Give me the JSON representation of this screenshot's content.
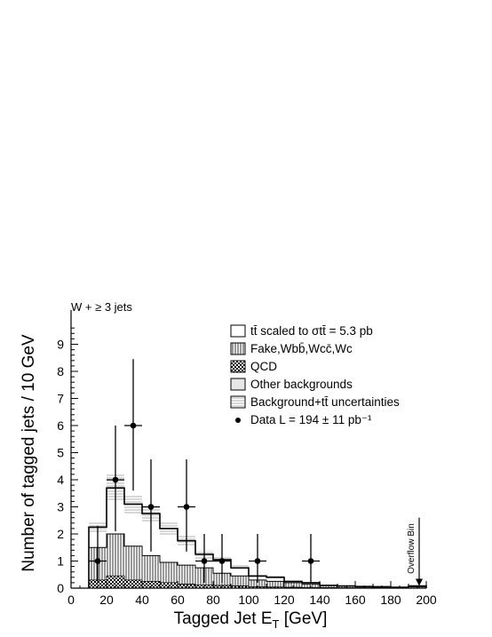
{
  "chart_data": {
    "type": "bar",
    "title": "W + ≥ 3 jets",
    "xlabel": {
      "main": "Tagged Jet E",
      "sub": "T",
      "unit": " [GeV]"
    },
    "ylabel": "Number of tagged jets / 10 GeV",
    "xlim": [
      0,
      200
    ],
    "ylim": [
      0,
      10
    ],
    "xticks": [
      0,
      20,
      40,
      60,
      80,
      100,
      120,
      140,
      160,
      180,
      200
    ],
    "yticks": [
      0,
      1,
      2,
      3,
      4,
      5,
      6,
      7,
      8,
      9
    ],
    "bin_edges": [
      10,
      20,
      30,
      40,
      50,
      60,
      70,
      80,
      90,
      100,
      110,
      120,
      130,
      140,
      150,
      160,
      170,
      180,
      190,
      200
    ],
    "series": [
      {
        "name": "tt̄ scaled to σtt̄ = 5.3 pb",
        "style": "open",
        "values": [
          2.25,
          3.7,
          3.1,
          2.75,
          2.2,
          1.75,
          1.25,
          1.05,
          0.75,
          0.45,
          0.4,
          0.25,
          0.2,
          0.1,
          0.08,
          0.06,
          0.05,
          0.03,
          0.08
        ]
      },
      {
        "name": "Other backgrounds",
        "style": "light-gray",
        "values": [
          1.5,
          2.0,
          1.55,
          1.2,
          0.95,
          0.85,
          0.75,
          0.55,
          0.45,
          0.3,
          0.25,
          0.2,
          0.15,
          0.1,
          0.08,
          0.06,
          0.05,
          0.03,
          0.05
        ]
      },
      {
        "name": "Fake,Wbb̄,Wcc̄,Wc",
        "style": "vertical-hatch",
        "values": [
          1.5,
          2.0,
          1.55,
          1.2,
          0.95,
          0.85,
          0.75,
          0.55,
          0.45,
          0.3,
          0.25,
          0.2,
          0.15,
          0.1,
          0.08,
          0.06,
          0.05,
          0.03,
          0.05
        ]
      },
      {
        "name": "QCD",
        "style": "checker",
        "values": [
          0.3,
          0.45,
          0.3,
          0.25,
          0.2,
          0.15,
          0.12,
          0.1,
          0.08,
          0.05,
          0.04,
          0.03,
          0.02,
          0.02,
          0.01,
          0.01,
          0.01,
          0.0,
          0.0
        ]
      },
      {
        "name": "Background+tt̄ uncertainties",
        "style": "horizontal-hatch",
        "values": [
          2.25,
          3.7,
          3.1,
          2.75,
          2.2,
          1.75,
          1.25,
          1.05,
          0.75,
          0.45,
          0.4,
          0.25,
          0.2,
          0.1,
          0.08,
          0.06,
          0.05,
          0.03,
          0.08
        ],
        "band": [
          0.2,
          0.5,
          0.35,
          0.3,
          0.25,
          0.2,
          0.15,
          0.12,
          0.1,
          0.06,
          0.05,
          0.04,
          0.03,
          0.02,
          0.02,
          0.01,
          0.01,
          0.01,
          0.02
        ]
      }
    ],
    "data_points": {
      "name": "Data L = 194 ± 11 pb⁻¹",
      "x": [
        15,
        25,
        35,
        45,
        65,
        75,
        85,
        105,
        135
      ],
      "y": [
        1,
        4,
        6,
        3,
        3,
        1,
        1,
        1,
        1
      ],
      "err_low": [
        0.8,
        1.9,
        2.4,
        1.65,
        1.65,
        0.8,
        0.8,
        0.8,
        0.8
      ],
      "err_high": [
        1.3,
        2.0,
        2.45,
        1.75,
        1.75,
        1.0,
        1.0,
        1.0,
        1.0
      ],
      "x_halfwidth": 5
    },
    "annotation": {
      "text": "Overflow Bin",
      "x": 195,
      "arrow_from_y": 2.6,
      "arrow_to_y": 0.05
    },
    "legend": {
      "placement": "top-right",
      "items": [
        {
          "kind": "open",
          "text": "tt̄ scaled to σtt̄ = 5.3 pb"
        },
        {
          "kind": "vertical-hatch",
          "text": "Fake,Wbb̄,Wcc̄,Wc"
        },
        {
          "kind": "checker",
          "text": "QCD"
        },
        {
          "kind": "light-gray",
          "text": "Other backgrounds"
        },
        {
          "kind": "horizontal-hatch",
          "text": "Background+tt̄ uncertainties"
        },
        {
          "kind": "marker",
          "text": "Data L = 194 ± 11 pb⁻¹"
        }
      ]
    }
  }
}
